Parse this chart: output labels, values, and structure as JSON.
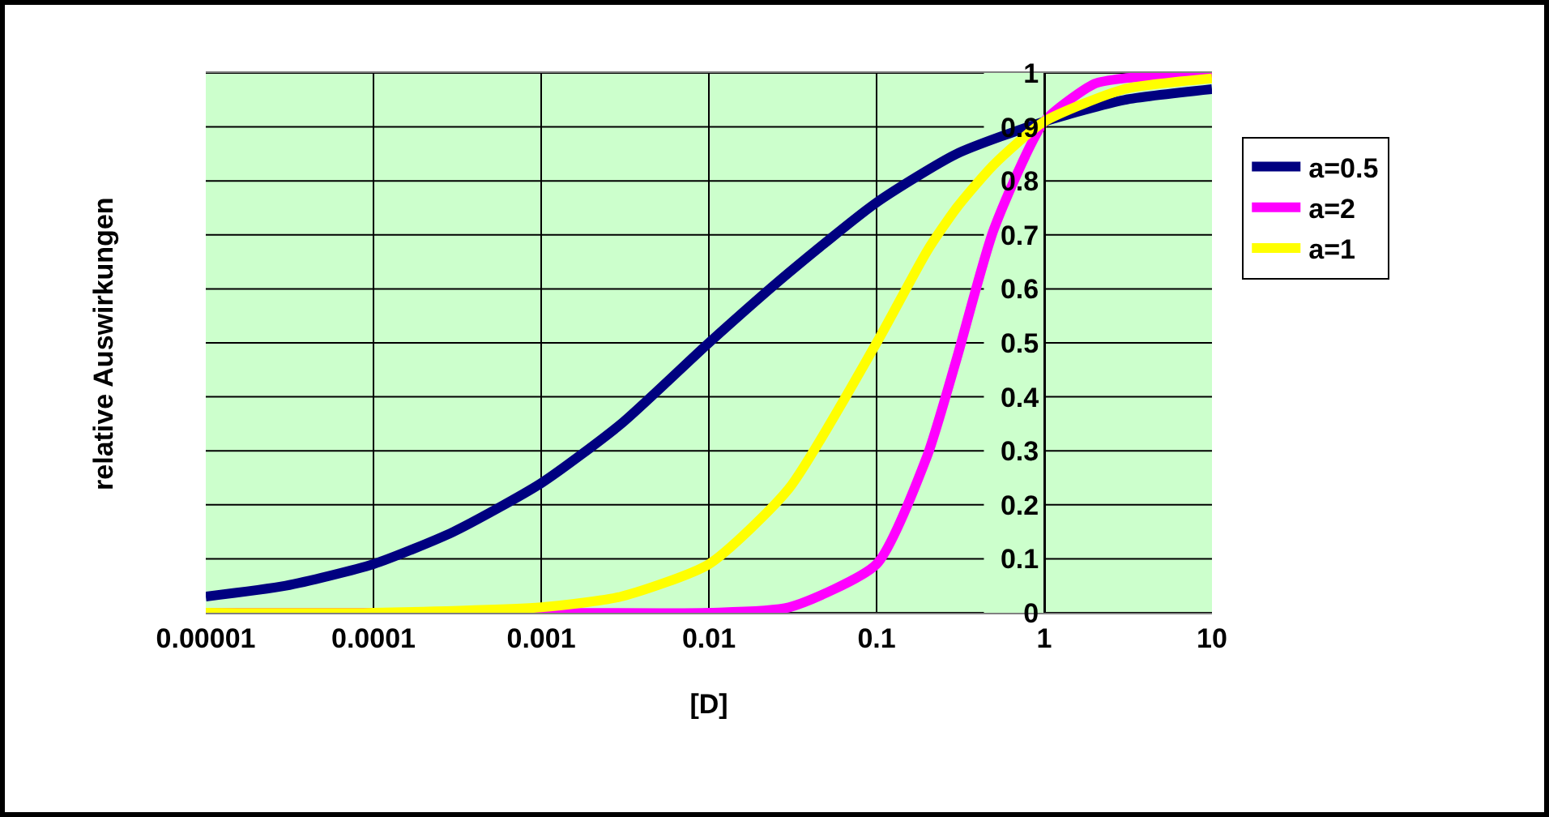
{
  "chart_data": {
    "type": "line",
    "xlabel": "[D]",
    "ylabel": "relative Auswirkungen",
    "log": "x",
    "xlim": [
      1e-05,
      10
    ],
    "xticks": [
      {
        "value": 1e-05,
        "label": "0.00001"
      },
      0.0001,
      0.001,
      0.01,
      0.1,
      1,
      10
    ],
    "ylim": [
      0,
      1
    ],
    "yticks": [
      0,
      0.1,
      0.2,
      0.3,
      0.4,
      0.5,
      0.6,
      0.7,
      0.8,
      0.9,
      1
    ],
    "grid": true,
    "legend": "right",
    "marker": "none",
    "line_style": "solid",
    "series": [
      {
        "name": "a=0.5",
        "color": "#000080",
        "x": [
          1e-05,
          3e-05,
          0.0001,
          0.0003,
          0.001,
          0.003,
          0.01,
          0.03,
          0.1,
          0.3,
          1,
          3,
          10
        ],
        "values": [
          0.03,
          0.05,
          0.09,
          0.15,
          0.24,
          0.35,
          0.5,
          0.63,
          0.76,
          0.85,
          0.91,
          0.95,
          0.97
        ]
      },
      {
        "name": "a=2",
        "color": "#ff00ff",
        "x": [
          1e-05,
          0.001,
          0.01,
          0.03,
          0.1,
          0.2,
          0.3,
          0.5,
          1,
          2,
          3,
          10
        ],
        "values": [
          0,
          0,
          0,
          0.01,
          0.09,
          0.29,
          0.47,
          0.71,
          0.91,
          0.98,
          0.99,
          1
        ]
      },
      {
        "name": "a=1",
        "color": "#ffff00",
        "x": [
          1e-05,
          0.0001,
          0.001,
          0.003,
          0.01,
          0.03,
          0.1,
          0.2,
          0.3,
          0.5,
          1,
          3,
          10
        ],
        "values": [
          0,
          0,
          0.01,
          0.03,
          0.09,
          0.23,
          0.5,
          0.67,
          0.75,
          0.83,
          0.91,
          0.97,
          0.99
        ]
      }
    ]
  }
}
